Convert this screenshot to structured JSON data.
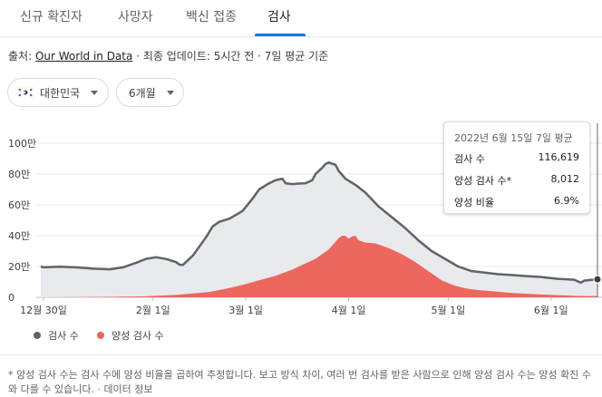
{
  "tabs": [
    {
      "label": "신규 확진자",
      "active": false
    },
    {
      "label": "사망자",
      "active": false
    },
    {
      "label": "백신 접종",
      "active": false
    },
    {
      "label": "검사",
      "active": true
    }
  ],
  "source": {
    "prefix": "출처: ",
    "link": "Our World in Data",
    "rest": " · 최종 업데이트: 5시간 전 · 7일 평균 기준"
  },
  "filters": {
    "region": "대한민국",
    "period": "6개월"
  },
  "tooltip": {
    "title": "2022년 6월 15일 7일 평균",
    "rows": [
      {
        "label": "검사 수",
        "value": "116,619"
      },
      {
        "label": "양성 검사 수*",
        "value": "8,012"
      },
      {
        "label": "양성 비율",
        "value": "6.9%"
      }
    ]
  },
  "legend": [
    {
      "label": "검사 수",
      "color": "#5f6368"
    },
    {
      "label": "양성 검사 수",
      "color": "#ee675c"
    }
  ],
  "footnote": {
    "text": "* 양성 검사 수는 검사 수에 양성 비율을 곱하여 추정합니다. 보고 방식 차이, 여러 번 검사를 받은 사람으로 인해 양성 검사 수는 양성 확진 수와 다를 수 있습니다. · ",
    "link": "데이터 정보"
  },
  "chart_data": {
    "type": "area",
    "title": "",
    "y_ticks": [
      "100만",
      "80만",
      "60만",
      "40만",
      "20만",
      "0"
    ],
    "y_tick_values": [
      1000000,
      800000,
      600000,
      400000,
      200000,
      0
    ],
    "ylim": [
      0,
      1000000
    ],
    "x_tick_labels": [
      "12월 30일",
      "2월 1일",
      "3월 1일",
      "4월 1일",
      "5월 1일",
      "6월 1일"
    ],
    "x_tick_days": [
      0,
      33,
      61,
      92,
      122,
      153
    ],
    "xlim": [
      0,
      167
    ],
    "colors": {
      "tests_line": "#5f6368",
      "tests_fill": "#e8eaed",
      "positive": "#ee675c"
    },
    "series": [
      {
        "name": "검사 수",
        "points": [
          [
            -4,
            200000
          ],
          [
            0,
            195000
          ],
          [
            5,
            198000
          ],
          [
            10,
            194000
          ],
          [
            15,
            186000
          ],
          [
            20,
            182000
          ],
          [
            24,
            195000
          ],
          [
            28,
            225000
          ],
          [
            31,
            250000
          ],
          [
            34,
            260000
          ],
          [
            37,
            248000
          ],
          [
            40,
            228000
          ],
          [
            41,
            212000
          ],
          [
            42,
            210000
          ],
          [
            45,
            270000
          ],
          [
            47,
            330000
          ],
          [
            49,
            390000
          ],
          [
            51,
            460000
          ],
          [
            53,
            490000
          ],
          [
            56,
            510000
          ],
          [
            60,
            560000
          ],
          [
            63,
            640000
          ],
          [
            65,
            700000
          ],
          [
            68,
            740000
          ],
          [
            70,
            760000
          ],
          [
            72,
            770000
          ],
          [
            73,
            740000
          ],
          [
            75,
            735000
          ],
          [
            77,
            738000
          ],
          [
            79,
            740000
          ],
          [
            81,
            760000
          ],
          [
            82,
            800000
          ],
          [
            84,
            840000
          ],
          [
            85,
            865000
          ],
          [
            86,
            875000
          ],
          [
            88,
            860000
          ],
          [
            89,
            820000
          ],
          [
            91,
            770000
          ],
          [
            94,
            730000
          ],
          [
            97,
            680000
          ],
          [
            101,
            590000
          ],
          [
            105,
            520000
          ],
          [
            109,
            450000
          ],
          [
            113,
            370000
          ],
          [
            117,
            300000
          ],
          [
            121,
            250000
          ],
          [
            125,
            200000
          ],
          [
            129,
            170000
          ],
          [
            133,
            160000
          ],
          [
            137,
            150000
          ],
          [
            141,
            145000
          ],
          [
            145,
            138000
          ],
          [
            150,
            132000
          ],
          [
            155,
            120000
          ],
          [
            160,
            114000
          ],
          [
            162,
            95000
          ],
          [
            163,
            108000
          ],
          [
            165,
            113000
          ],
          [
            167,
            116619
          ]
        ]
      },
      {
        "name": "양성 검사 수",
        "points": [
          [
            -4,
            0
          ],
          [
            10,
            1000
          ],
          [
            20,
            3000
          ],
          [
            30,
            6000
          ],
          [
            40,
            15000
          ],
          [
            45,
            25000
          ],
          [
            50,
            35000
          ],
          [
            55,
            55000
          ],
          [
            60,
            80000
          ],
          [
            65,
            110000
          ],
          [
            70,
            140000
          ],
          [
            75,
            180000
          ],
          [
            78,
            210000
          ],
          [
            82,
            250000
          ],
          [
            84,
            280000
          ],
          [
            86,
            310000
          ],
          [
            88,
            360000
          ],
          [
            89,
            385000
          ],
          [
            90,
            400000
          ],
          [
            91,
            398000
          ],
          [
            92,
            380000
          ],
          [
            93,
            395000
          ],
          [
            94,
            400000
          ],
          [
            95,
            370000
          ],
          [
            97,
            355000
          ],
          [
            100,
            350000
          ],
          [
            104,
            320000
          ],
          [
            108,
            280000
          ],
          [
            112,
            230000
          ],
          [
            116,
            170000
          ],
          [
            120,
            110000
          ],
          [
            124,
            75000
          ],
          [
            128,
            55000
          ],
          [
            132,
            45000
          ],
          [
            136,
            38000
          ],
          [
            140,
            30000
          ],
          [
            144,
            25000
          ],
          [
            150,
            18000
          ],
          [
            156,
            13000
          ],
          [
            162,
            9000
          ],
          [
            167,
            8012
          ]
        ]
      }
    ],
    "tooltip_date": "2022-06-15"
  }
}
